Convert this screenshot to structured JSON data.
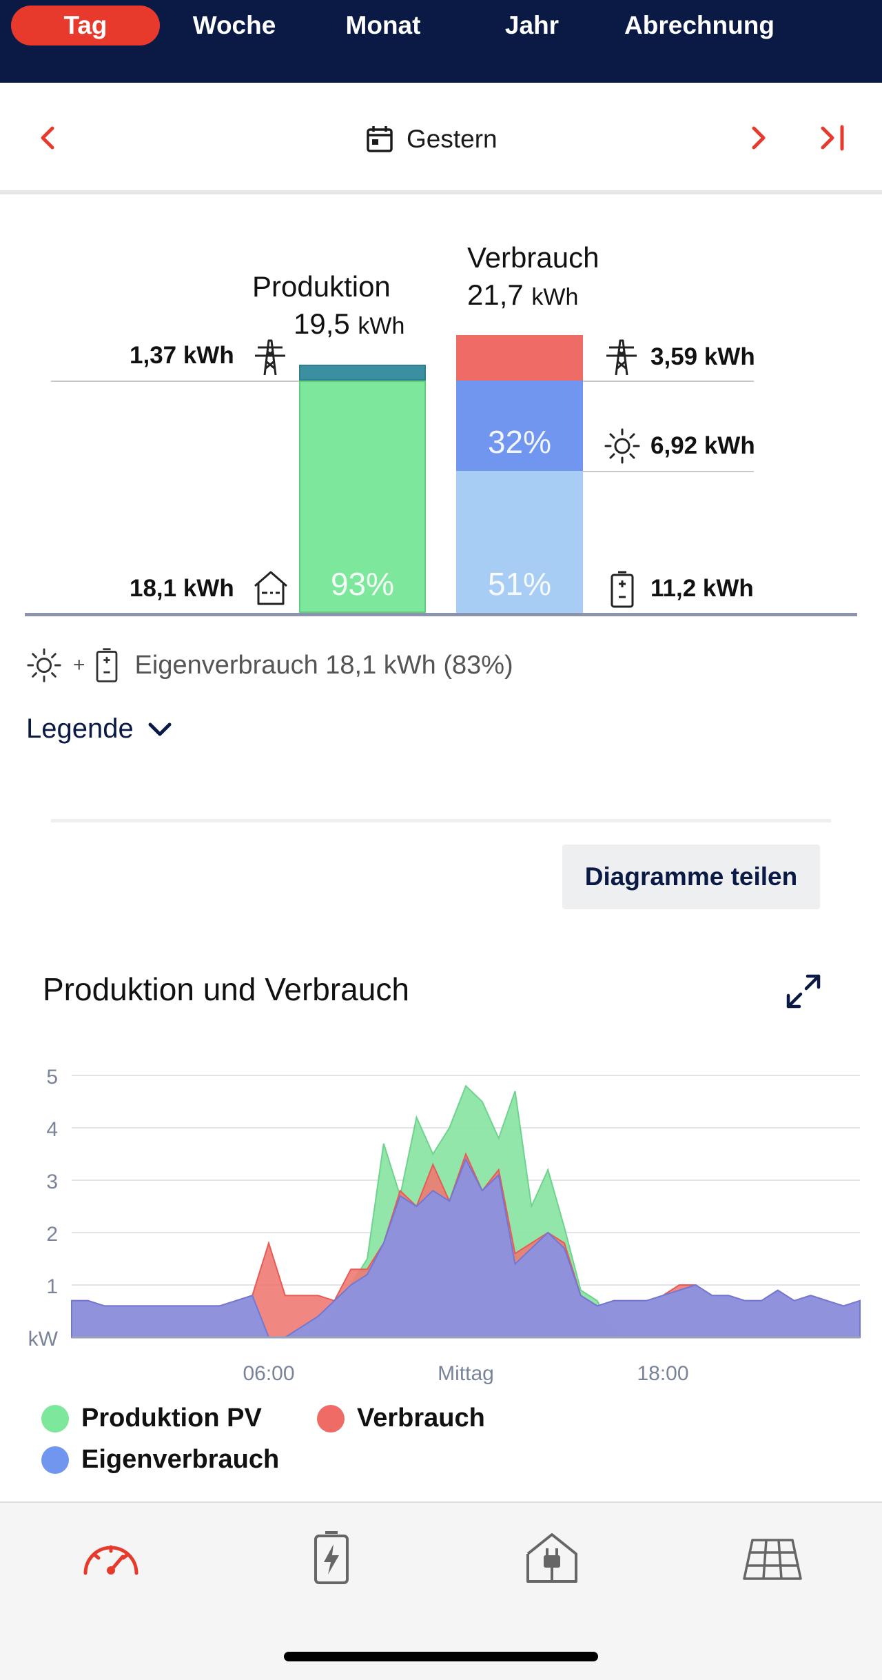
{
  "tabs": [
    {
      "label": "Tag",
      "active": true
    },
    {
      "label": "Woche",
      "active": false
    },
    {
      "label": "Monat",
      "active": false
    },
    {
      "label": "Jahr",
      "active": false
    },
    {
      "label": "Abrechnung",
      "active": false
    }
  ],
  "date_nav": {
    "label": "Gestern",
    "icons": [
      "chevron-left-icon",
      "calendar-icon",
      "chevron-right-icon",
      "skip-to-last-icon"
    ]
  },
  "balance": {
    "production": {
      "title": "Produktion",
      "total_value": "19,5",
      "total_unit": "kWh",
      "grid_feed_in": "1,37 kWh",
      "self_used": "18,1 kWh",
      "self_used_percent": "93%",
      "grid_fraction": 0.07,
      "self_fraction": 0.93
    },
    "consumption": {
      "title": "Verbrauch",
      "total_value": "21,7",
      "total_unit": "kWh",
      "from_grid": "3,59 kWh",
      "from_pv": "6,92 kWh",
      "from_battery": "11,2 kWh",
      "pv_percent": "32%",
      "battery_percent": "51%"
    },
    "colors": {
      "grid_feed": "#3a8fa0",
      "production": "#7de89b",
      "grid_draw": "#ee6b66",
      "pv": "#7096f0",
      "battery": "#a8cdf5"
    }
  },
  "eigenverbrauch": {
    "plus": "+",
    "text": "Eigenverbrauch 18,1 kWh (83%)"
  },
  "legend_toggle": {
    "label": "Legende"
  },
  "share_button": {
    "label": "Diagramme teilen"
  },
  "chart_title": "Produktion und Verbrauch",
  "chart_data": {
    "type": "area",
    "title": "Produktion und Verbrauch",
    "ylabel": "kW",
    "ylim": [
      0,
      5
    ],
    "yticks": [
      "1",
      "2",
      "3",
      "4",
      "5"
    ],
    "xticks": [
      "06:00",
      "Mittag",
      "18:00"
    ],
    "x": [
      "00:00",
      "00:30",
      "01:00",
      "01:30",
      "02:00",
      "02:30",
      "03:00",
      "03:30",
      "04:00",
      "04:30",
      "05:00",
      "05:30",
      "06:00",
      "06:30",
      "07:00",
      "07:30",
      "08:00",
      "08:30",
      "09:00",
      "09:30",
      "10:00",
      "10:30",
      "11:00",
      "11:30",
      "12:00",
      "12:30",
      "13:00",
      "13:30",
      "14:00",
      "14:30",
      "15:00",
      "15:30",
      "16:00",
      "16:30",
      "17:00",
      "17:30",
      "18:00",
      "18:30",
      "19:00",
      "19:30",
      "20:00",
      "20:30",
      "21:00",
      "21:30",
      "22:00",
      "22:30",
      "23:00",
      "23:30",
      "24:00"
    ],
    "series": [
      {
        "name": "Produktion PV",
        "color": "#86e3a0",
        "values": [
          0,
          0,
          0,
          0,
          0,
          0,
          0,
          0,
          0,
          0,
          0,
          0,
          0,
          0,
          0,
          0.2,
          0.5,
          1.0,
          1.5,
          3.7,
          2.7,
          4.2,
          3.5,
          4.0,
          4.8,
          4.5,
          3.8,
          4.7,
          2.5,
          3.2,
          2.1,
          0.9,
          0.7,
          0.1,
          0,
          0,
          0,
          0,
          0,
          0,
          0,
          0,
          0,
          0,
          0,
          0,
          0,
          0,
          0
        ]
      },
      {
        "name": "Verbrauch",
        "color": "#ee6b66",
        "values": [
          0.7,
          0.7,
          0.6,
          0.6,
          0.6,
          0.6,
          0.6,
          0.6,
          0.6,
          0.6,
          0.7,
          0.8,
          1.8,
          0.8,
          0.8,
          0.8,
          0.7,
          1.3,
          1.3,
          1.8,
          2.8,
          2.5,
          3.3,
          2.6,
          3.5,
          2.8,
          3.2,
          1.6,
          1.8,
          2.0,
          1.8,
          0.8,
          0.6,
          0.7,
          0.7,
          0.7,
          0.8,
          1.0,
          1.0,
          0.8,
          0.8,
          0.7,
          0.7,
          0.9,
          0.7,
          0.8,
          0.7,
          0.6,
          0.7
        ]
      },
      {
        "name": "Eigenverbrauch",
        "color": "#7f8ee0",
        "values": [
          0.7,
          0.7,
          0.6,
          0.6,
          0.6,
          0.6,
          0.6,
          0.6,
          0.6,
          0.6,
          0.7,
          0.8,
          0.0,
          0.0,
          0.2,
          0.4,
          0.7,
          1.0,
          1.2,
          1.8,
          2.7,
          2.5,
          2.8,
          2.6,
          3.4,
          2.8,
          3.1,
          1.4,
          1.7,
          2.0,
          1.7,
          0.8,
          0.6,
          0.7,
          0.7,
          0.7,
          0.8,
          0.9,
          1.0,
          0.8,
          0.8,
          0.7,
          0.7,
          0.9,
          0.7,
          0.8,
          0.7,
          0.6,
          0.7
        ]
      }
    ],
    "grid": true,
    "legend_position": "bottom"
  },
  "legend": [
    {
      "label": "Produktion PV",
      "color": "#7de89b"
    },
    {
      "label": "Verbrauch",
      "color": "#ee6b66"
    },
    {
      "label": "Eigenverbrauch",
      "color": "#7096f0"
    }
  ],
  "bottom_nav": {
    "icons": [
      "speedometer-icon",
      "battery-charging-icon",
      "house-plug-icon",
      "solar-panel-icon"
    ],
    "active_color": "#e83a2c",
    "inactive_color": "#666666"
  }
}
